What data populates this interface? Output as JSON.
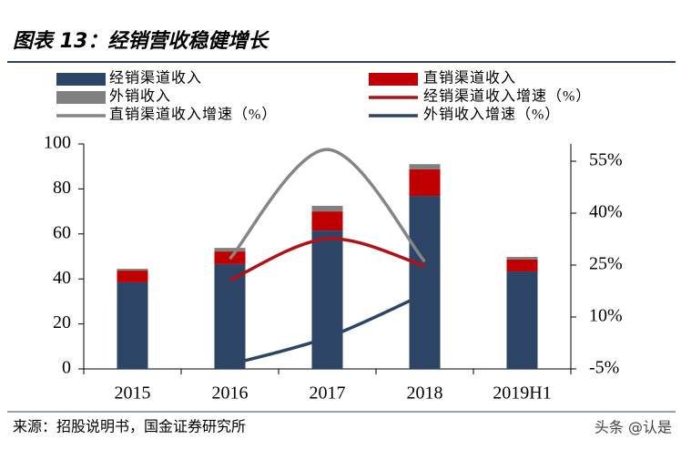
{
  "title": "图表 13：经销营收稳健增长",
  "source": "来源：招股说明书，国金证券研究所",
  "watermark": "头条 @认是",
  "chart_data": {
    "type": "bar",
    "categories": [
      "2015",
      "2016",
      "2017",
      "2018",
      "2019H1"
    ],
    "ylim": [
      0,
      100
    ],
    "yticks": [
      0,
      20,
      40,
      60,
      80,
      100
    ],
    "y2lim": [
      -5,
      60
    ],
    "y2ticks": [
      {
        "value": -5,
        "label": "-5%"
      },
      {
        "value": 10,
        "label": "10%"
      },
      {
        "value": 25,
        "label": "25%"
      },
      {
        "value": 40,
        "label": "40%"
      },
      {
        "value": 55,
        "label": "55%"
      }
    ],
    "stacked": true,
    "series": [
      {
        "name": "经销渠道收入",
        "type": "bar",
        "color": "#2c4566",
        "values": [
          38.5,
          46.6,
          61.5,
          76.9,
          43.3
        ]
      },
      {
        "name": "直销渠道收入",
        "type": "bar",
        "color": "#c00000",
        "values": [
          5.2,
          5.6,
          8.5,
          11.8,
          5.3
        ]
      },
      {
        "name": "外销收入",
        "type": "bar",
        "color": "#808080",
        "values": [
          0.8,
          1.6,
          2.5,
          2.3,
          1.2
        ]
      },
      {
        "name": "经销渠道收入增速（%）",
        "type": "line",
        "axis": "y2",
        "color": "#b40f14",
        "values": [
          null,
          20.6,
          32.6,
          24.7,
          null
        ]
      },
      {
        "name": "直销渠道收入增速（%）",
        "type": "line",
        "axis": "y2",
        "color": "#858585",
        "values": [
          null,
          26.8,
          58.4,
          26.0,
          null
        ]
      },
      {
        "name": "外销收入增速（%）",
        "type": "line",
        "axis": "y2",
        "color": "#2c4566",
        "values": [
          null,
          -3.7,
          4.1,
          16.7,
          null
        ]
      }
    ]
  }
}
